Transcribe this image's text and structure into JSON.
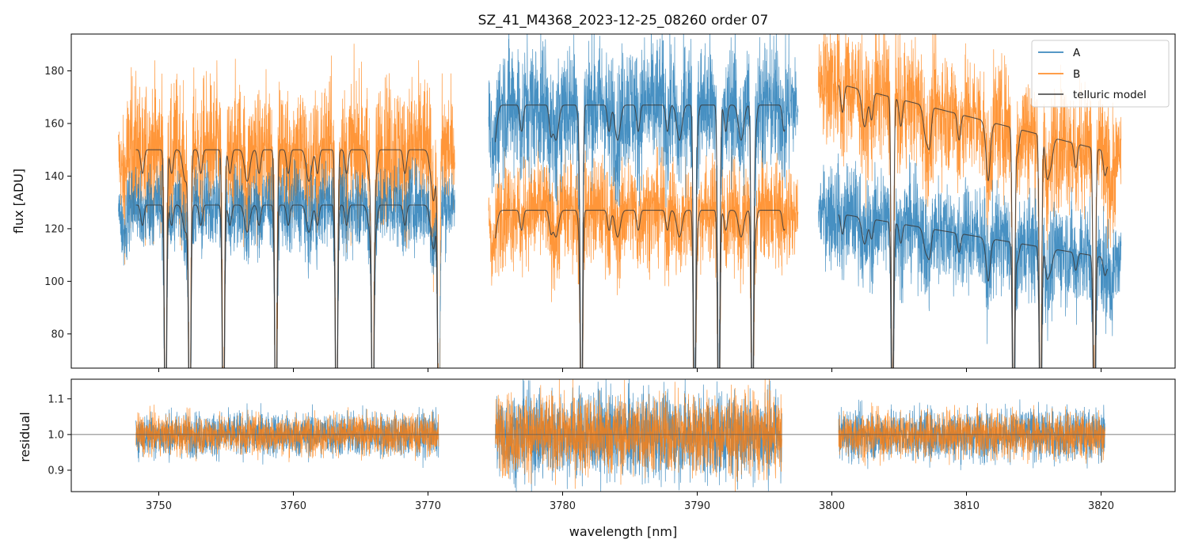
{
  "chart_data": [
    {
      "type": "line",
      "title": "SZ_41_M4368_2023-12-25_08260  order 07",
      "xlabel": "",
      "ylabel": "flux [ADU]",
      "xlim": [
        3743.5,
        3825.5
      ],
      "ylim": [
        67,
        194
      ],
      "yticks": [
        80,
        100,
        120,
        140,
        160,
        180
      ],
      "xticks": [
        3750,
        3760,
        3770,
        3780,
        3790,
        3800,
        3810,
        3820
      ],
      "legend": {
        "placement": "top-right",
        "entries": [
          {
            "label": "A",
            "color": "#1f77b4"
          },
          {
            "label": "B",
            "color": "#ff7f0e"
          },
          {
            "label": "telluric model",
            "color": "#3b3b3b"
          }
        ]
      },
      "segments": [
        {
          "x_start": 3747.0,
          "x_end": 3772.0,
          "model_start": 3748.3,
          "model_end": 3770.8,
          "A_level": 129,
          "B_level": 150,
          "A_noise": 8,
          "B_noise": 14
        },
        {
          "x_start": 3774.5,
          "x_end": 3797.5,
          "model_start": 3775.0,
          "model_end": 3796.5,
          "A_level": 167,
          "B_level": 127,
          "A_noise": 13,
          "B_noise": 10
        },
        {
          "x_start": 3799.0,
          "x_end": 3821.5,
          "model_start": 3800.5,
          "model_end": 3820.5,
          "A_level_start": 127,
          "A_level_end": 108,
          "B_level_start": 177,
          "B_level_end": 148,
          "A_noise": 10,
          "B_noise": 12
        }
      ],
      "absorption_lines": [
        3750.5,
        3752.3,
        3754.8,
        3758.7,
        3763.2,
        3765.9,
        3770.8,
        3781.4,
        3789.8,
        3791.6,
        3794.1,
        3804.5,
        3813.5,
        3815.5,
        3819.5
      ]
    },
    {
      "type": "line",
      "title": "",
      "xlabel": "wavelength [nm]",
      "ylabel": "residual",
      "xlim": [
        3743.5,
        3825.5
      ],
      "ylim": [
        0.84,
        1.155
      ],
      "yticks": [
        0.9,
        1.0,
        1.1
      ],
      "xticks": [
        3750,
        3760,
        3770,
        3780,
        3790,
        3800,
        3810,
        3820
      ],
      "reference_line": 1.0,
      "segments": [
        {
          "x_start": 3748.3,
          "x_end": 3770.8,
          "noise": 0.03
        },
        {
          "x_start": 3775.0,
          "x_end": 3796.3,
          "noise": 0.06
        },
        {
          "x_start": 3800.5,
          "x_end": 3820.3,
          "noise": 0.035
        }
      ]
    }
  ]
}
